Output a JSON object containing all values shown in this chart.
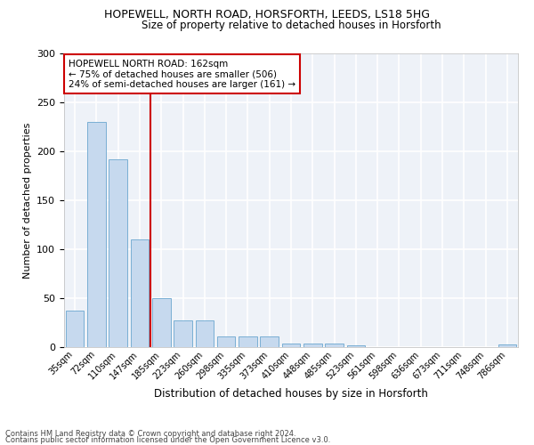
{
  "title1": "HOPEWELL, NORTH ROAD, HORSFORTH, LEEDS, LS18 5HG",
  "title2": "Size of property relative to detached houses in Horsforth",
  "xlabel": "Distribution of detached houses by size in Horsforth",
  "ylabel": "Number of detached properties",
  "categories": [
    "35sqm",
    "72sqm",
    "110sqm",
    "147sqm",
    "185sqm",
    "223sqm",
    "260sqm",
    "298sqm",
    "335sqm",
    "373sqm",
    "410sqm",
    "448sqm",
    "485sqm",
    "523sqm",
    "561sqm",
    "598sqm",
    "636sqm",
    "673sqm",
    "711sqm",
    "748sqm",
    "786sqm"
  ],
  "values": [
    37,
    230,
    192,
    110,
    50,
    27,
    27,
    11,
    11,
    11,
    4,
    4,
    4,
    2,
    0,
    0,
    0,
    0,
    0,
    0,
    3
  ],
  "bar_color": "#c6d9ee",
  "bar_edge_color": "#7aafd4",
  "vline_x": 3.5,
  "vline_color": "#cc0000",
  "annotation_text": "HOPEWELL NORTH ROAD: 162sqm\n← 75% of detached houses are smaller (506)\n24% of semi-detached houses are larger (161) →",
  "annotation_box_color": "white",
  "annotation_box_edge": "#cc0000",
  "ylim": [
    0,
    300
  ],
  "yticks": [
    0,
    50,
    100,
    150,
    200,
    250,
    300
  ],
  "background_color": "#eef2f8",
  "footer1": "Contains HM Land Registry data © Crown copyright and database right 2024.",
  "footer2": "Contains public sector information licensed under the Open Government Licence v3.0."
}
